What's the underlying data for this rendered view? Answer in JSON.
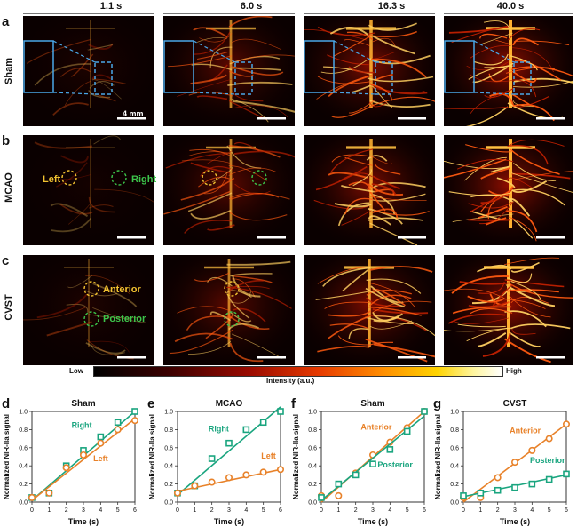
{
  "times": [
    "1.1 s",
    "6.0 s",
    "16.3 s",
    "40.0 s"
  ],
  "row_labels": [
    "Sham",
    "MCAO",
    "CVST"
  ],
  "panel_letters": [
    "a",
    "b",
    "c",
    "d",
    "e",
    "f",
    "g"
  ],
  "scale_label": "4 mm",
  "roi_labels": {
    "left": "Left",
    "right": "Right",
    "anterior": "Anterior",
    "posterior": "Posterior"
  },
  "colorbar": {
    "low": "Low",
    "high": "High",
    "title": "Intensity (a.u.)"
  },
  "colors": {
    "teal": "#1aa57f",
    "orange": "#e8822a",
    "roi_yellow": "#f2c230",
    "roi_green": "#3cc44a",
    "box_blue": "#4aa8e8"
  },
  "chart_data": [
    {
      "type": "scatter",
      "title": "Sham",
      "xlabel": "Time (s)",
      "ylabel": "Normalized NIR-IIa signal",
      "xlim": [
        0,
        6
      ],
      "ylim": [
        0,
        1.0
      ],
      "xticks": [
        0,
        1,
        2,
        3,
        4,
        5,
        6
      ],
      "yticks": [
        0.0,
        0.2,
        0.4,
        0.6,
        0.8,
        1.0
      ],
      "series": [
        {
          "name": "Right",
          "color": "#1aa57f",
          "marker": "square",
          "x": [
            0,
            1,
            2,
            3,
            4,
            5,
            6
          ],
          "y": [
            0.05,
            0.1,
            0.4,
            0.57,
            0.72,
            0.88,
            1.0
          ],
          "fit": [
            [
              0,
              0.02
            ],
            [
              6,
              1.0
            ]
          ]
        },
        {
          "name": "Left",
          "color": "#e8822a",
          "marker": "circle",
          "x": [
            0,
            1,
            2,
            3,
            4,
            5,
            6
          ],
          "y": [
            0.05,
            0.1,
            0.38,
            0.52,
            0.65,
            0.8,
            0.9
          ],
          "fit": [
            [
              0,
              0.02
            ],
            [
              6,
              0.92
            ]
          ]
        }
      ],
      "labels": [
        {
          "series": "Right",
          "x": 2.9,
          "y": 0.82
        },
        {
          "series": "Left",
          "x": 4.0,
          "y": 0.45
        }
      ]
    },
    {
      "type": "scatter",
      "title": "MCAO",
      "xlabel": "Time (s)",
      "ylabel": "Normalized NIR-IIa signal",
      "xlim": [
        0,
        6
      ],
      "ylim": [
        0,
        1.0
      ],
      "xticks": [
        0,
        1,
        2,
        3,
        4,
        5,
        6
      ],
      "yticks": [
        0.0,
        0.2,
        0.4,
        0.6,
        0.8,
        1.0
      ],
      "series": [
        {
          "name": "Right",
          "color": "#1aa57f",
          "marker": "square",
          "x": [
            0,
            1,
            2,
            3,
            4,
            5,
            6
          ],
          "y": [
            0.1,
            0.18,
            0.48,
            0.65,
            0.8,
            0.88,
            1.0
          ],
          "fit": [
            [
              0,
              0.08
            ],
            [
              6,
              1.05
            ]
          ]
        },
        {
          "name": "Left",
          "color": "#e8822a",
          "marker": "circle",
          "x": [
            0,
            1,
            2,
            3,
            4,
            5,
            6
          ],
          "y": [
            0.1,
            0.18,
            0.22,
            0.27,
            0.3,
            0.33,
            0.36
          ],
          "fit": [
            [
              0,
              0.12
            ],
            [
              6,
              0.36
            ]
          ]
        }
      ],
      "labels": [
        {
          "series": "Right",
          "x": 2.4,
          "y": 0.78
        },
        {
          "series": "Left",
          "x": 5.3,
          "y": 0.48
        }
      ]
    },
    {
      "type": "scatter",
      "title": "Sham",
      "xlabel": "Time (s)",
      "ylabel": "Normalized NIR-IIa signal",
      "xlim": [
        0,
        6
      ],
      "ylim": [
        0,
        1.0
      ],
      "xticks": [
        0,
        1,
        2,
        3,
        4,
        5,
        6
      ],
      "yticks": [
        0.0,
        0.2,
        0.4,
        0.6,
        0.8,
        1.0
      ],
      "series": [
        {
          "name": "Anterior",
          "color": "#e8822a",
          "marker": "circle",
          "x": [
            0,
            1,
            2,
            3,
            4,
            5,
            6
          ],
          "y": [
            0.07,
            0.07,
            0.32,
            0.52,
            0.66,
            0.82,
            1.0
          ],
          "fit": [
            [
              0,
              0.0
            ],
            [
              6,
              1.0
            ]
          ]
        },
        {
          "name": "Posterior",
          "color": "#1aa57f",
          "marker": "square",
          "x": [
            0,
            1,
            2,
            3,
            4,
            5,
            6
          ],
          "y": [
            0.05,
            0.2,
            0.3,
            0.42,
            0.58,
            0.78,
            1.0
          ],
          "fit": [
            [
              0,
              0.02
            ],
            [
              6,
              0.95
            ]
          ]
        }
      ],
      "labels": [
        {
          "series": "Anterior",
          "x": 3.2,
          "y": 0.8
        },
        {
          "series": "Posterior",
          "x": 4.3,
          "y": 0.38
        }
      ]
    },
    {
      "type": "scatter",
      "title": "CVST",
      "xlabel": "Time (s)",
      "ylabel": "Normalized NIR-IIa signal",
      "xlim": [
        0,
        6
      ],
      "ylim": [
        0,
        1.0
      ],
      "xticks": [
        0,
        1,
        2,
        3,
        4,
        5,
        6
      ],
      "yticks": [
        0.0,
        0.2,
        0.4,
        0.6,
        0.8,
        1.0
      ],
      "series": [
        {
          "name": "Anterior",
          "color": "#e8822a",
          "marker": "circle",
          "x": [
            0,
            1,
            2,
            3,
            4,
            5,
            6
          ],
          "y": [
            0.05,
            0.05,
            0.27,
            0.44,
            0.57,
            0.7,
            0.86
          ],
          "fit": [
            [
              0,
              0.0
            ],
            [
              6,
              0.86
            ]
          ]
        },
        {
          "name": "Posterior",
          "color": "#1aa57f",
          "marker": "square",
          "x": [
            0,
            1,
            2,
            3,
            4,
            5,
            6
          ],
          "y": [
            0.07,
            0.1,
            0.13,
            0.16,
            0.2,
            0.25,
            0.31
          ],
          "fit": [
            [
              0,
              0.06
            ],
            [
              6,
              0.3
            ]
          ]
        }
      ],
      "labels": [
        {
          "series": "Anterior",
          "x": 3.6,
          "y": 0.76
        },
        {
          "series": "Posterior",
          "x": 4.9,
          "y": 0.43
        }
      ]
    }
  ]
}
